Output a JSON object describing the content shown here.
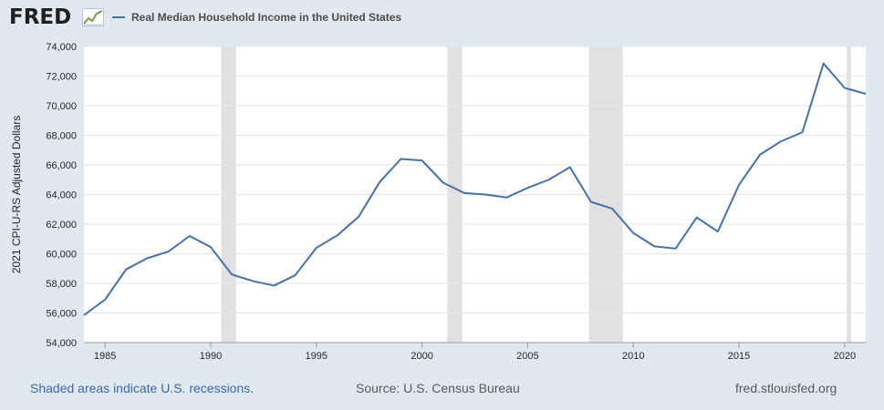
{
  "header": {
    "logo_text": "FRED",
    "logo_icon": "chart-line-icon",
    "legend_label": "Real Median Household Income in the United States"
  },
  "footer": {
    "recession_note": "Shaded areas indicate U.S. recessions.",
    "source": "Source: U.S. Census Bureau",
    "site": "fred.stlouisfed.org"
  },
  "chart_data": {
    "type": "line",
    "title": "Real Median Household Income in the United States",
    "ylabel": "2021 CPI-U-RS Adjusted Dollars",
    "xlabel": "",
    "xlim": [
      1984,
      2021
    ],
    "ylim": [
      54000,
      74000
    ],
    "x_ticks": [
      1985,
      1990,
      1995,
      2000,
      2005,
      2010,
      2015,
      2020
    ],
    "y_ticks": [
      54000,
      56000,
      58000,
      60000,
      62000,
      64000,
      66000,
      68000,
      70000,
      72000,
      74000
    ],
    "y_tick_labels": [
      "54,000",
      "56,000",
      "58,000",
      "60,000",
      "62,000",
      "64,000",
      "66,000",
      "68,000",
      "70,000",
      "72,000",
      "74,000"
    ],
    "grid": "horizontal",
    "line_color": "#4572a7",
    "recession_color": "#e1e1e1",
    "recessions": [
      [
        1990.5,
        1991.2
      ],
      [
        2001.2,
        2001.9
      ],
      [
        2007.9,
        2009.5
      ],
      [
        2020.1,
        2020.3
      ]
    ],
    "series": [
      {
        "x": [
          1984,
          1985,
          1986,
          1987,
          1988,
          1989,
          1990,
          1991,
          1992,
          1993,
          1994,
          1995,
          1996,
          1997,
          1998,
          1999,
          2000,
          2001,
          2002,
          2003,
          2004,
          2005,
          2006,
          2007,
          2008,
          2009,
          2010,
          2011,
          2012,
          2013,
          2014,
          2015,
          2016,
          2017,
          2018,
          2019,
          2020,
          2021
        ],
        "values": [
          55850,
          56900,
          58950,
          59700,
          60150,
          61200,
          60450,
          58600,
          58150,
          57850,
          58550,
          60400,
          61250,
          62500,
          64850,
          66400,
          66300,
          64800,
          64100,
          64000,
          63800,
          64450,
          65000,
          65850,
          63500,
          63050,
          61400,
          60500,
          60350,
          62450,
          61500,
          64650,
          66700,
          67600,
          68200,
          72850,
          71200,
          70800
        ]
      }
    ]
  }
}
